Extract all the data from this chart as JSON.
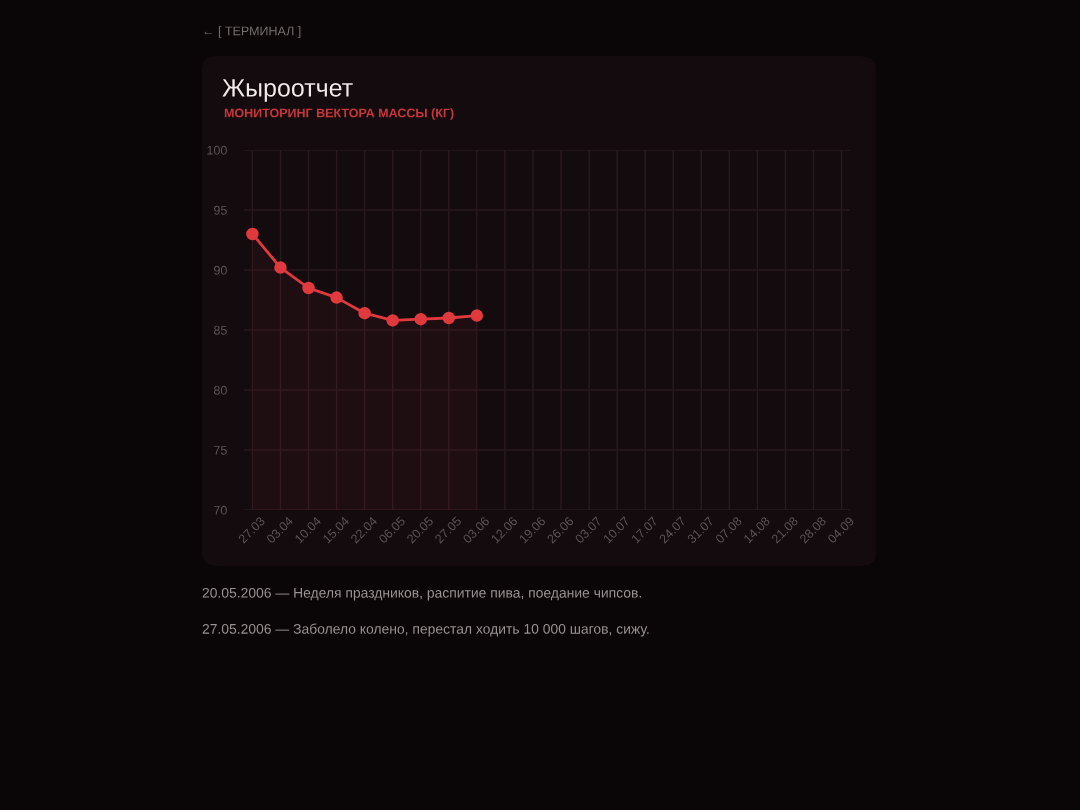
{
  "chart_data": {
    "type": "area",
    "title": "Жыроотчет",
    "subtitle": "МОНИТОРИНГ ВЕКТОРА МАССЫ (КГ)",
    "categories": [
      "27.03",
      "03.04",
      "10.04",
      "15.04",
      "22.04",
      "06.05",
      "20.05",
      "27.05",
      "03.06",
      "12.06",
      "19.06",
      "26.06",
      "03.07",
      "10.07",
      "17.07",
      "24.07",
      "31.07",
      "07.08",
      "14.08",
      "21.08",
      "28.08",
      "04.09"
    ],
    "series": [
      {
        "color": "#e0393e",
        "values": [
          93.0,
          90.2,
          88.5,
          87.7,
          86.4,
          85.8,
          85.9,
          86.0,
          86.2,
          null,
          null,
          null,
          null,
          null,
          null,
          null,
          null,
          null,
          null,
          null,
          null,
          null
        ]
      }
    ],
    "ylim": [
      70,
      100
    ],
    "yticks": [
      70,
      75,
      80,
      85,
      90,
      95,
      100
    ],
    "grid": true,
    "marker": "circle",
    "line_style": "solid",
    "annotations": [
      "← [ ТЕРМИНАЛ ]",
      "20.05.2006 — Неделя праздников, распитие пива, поедание чипсов.",
      "27.05.2006 — Заболело колено, перестал ходить 10 000 шагов, сижу."
    ]
  }
}
